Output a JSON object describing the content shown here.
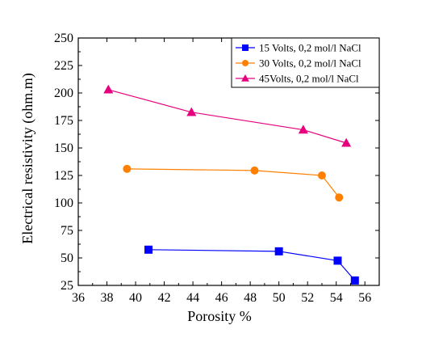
{
  "chart_data": {
    "type": "line",
    "xlabel": "Porosity %",
    "ylabel": "Electrical resistivity (ohm.m)",
    "xlim": [
      36,
      57
    ],
    "ylim": [
      25,
      250
    ],
    "xticks": [
      36,
      38,
      40,
      42,
      44,
      46,
      48,
      50,
      52,
      54,
      56
    ],
    "yticks": [
      25,
      50,
      75,
      100,
      125,
      150,
      175,
      200,
      225,
      250
    ],
    "legend_position": "top-right",
    "grid": false,
    "series": [
      {
        "name": "15 Volts, 0,2 mol/l NaCl",
        "color": "#0000ff",
        "marker": "square",
        "x": [
          40.9,
          50.0,
          54.1,
          55.3
        ],
        "y": [
          57.5,
          56.0,
          47.5,
          29.5
        ]
      },
      {
        "name": "30 Volts, 0,2 mol/l NaCl",
        "color": "#ff8000",
        "marker": "circle",
        "x": [
          39.4,
          48.3,
          53.0,
          54.2
        ],
        "y": [
          131.0,
          129.5,
          125.0,
          105.0
        ]
      },
      {
        "name": "45Volts, 0,2 mol/l NaCl",
        "color": "#e6007e",
        "marker": "triangle",
        "x": [
          38.1,
          43.9,
          51.7,
          54.7
        ],
        "y": [
          203.0,
          182.5,
          166.5,
          154.5
        ]
      }
    ]
  }
}
